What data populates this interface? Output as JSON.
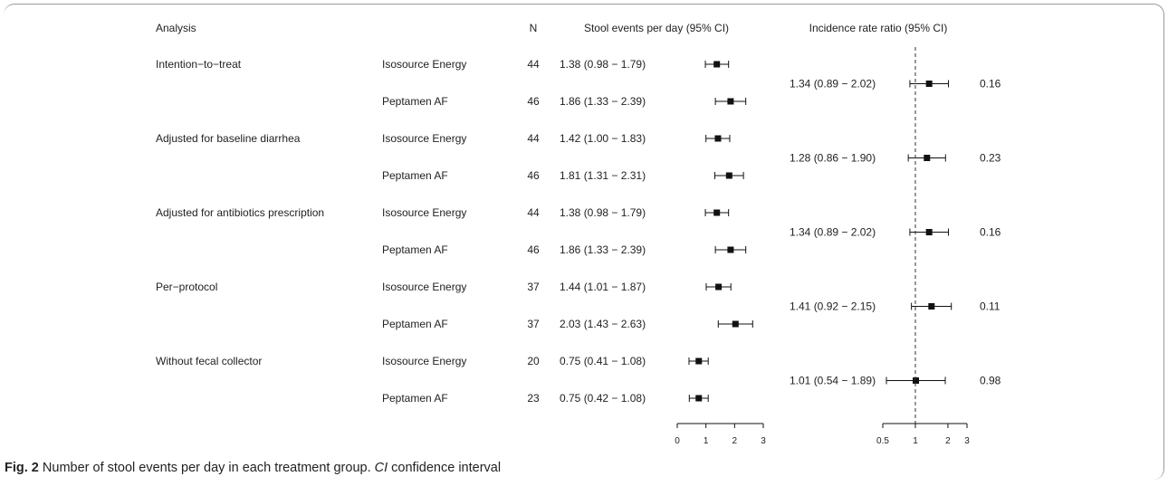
{
  "chart_data": {
    "type": "forest",
    "headers": {
      "analysis": "Analysis",
      "n": "N",
      "stool": "Stool events per day (95% CI)",
      "irr": "Incidence rate ratio (95% CI)"
    },
    "groups": [
      {
        "analysis": "Intention−to−treat",
        "rows": [
          {
            "treatment": "Isosource Energy",
            "n": "44",
            "label": "1.38 (0.98 − 1.79)",
            "est": 1.38,
            "lo": 0.98,
            "hi": 1.79
          },
          {
            "treatment": "Peptamen AF",
            "n": "46",
            "label": "1.86 (1.33 − 2.39)",
            "est": 1.86,
            "lo": 1.33,
            "hi": 2.39
          }
        ],
        "irr": {
          "label": "1.34 (0.89 − 2.02)",
          "est": 1.34,
          "lo": 0.89,
          "hi": 2.02,
          "p": "0.16"
        }
      },
      {
        "analysis": "Adjusted for baseline diarrhea",
        "rows": [
          {
            "treatment": "Isosource Energy",
            "n": "44",
            "label": "1.42 (1.00 − 1.83)",
            "est": 1.42,
            "lo": 1.0,
            "hi": 1.83
          },
          {
            "treatment": "Peptamen AF",
            "n": "46",
            "label": "1.81 (1.31 − 2.31)",
            "est": 1.81,
            "lo": 1.31,
            "hi": 2.31
          }
        ],
        "irr": {
          "label": "1.28 (0.86 − 1.90)",
          "est": 1.28,
          "lo": 0.86,
          "hi": 1.9,
          "p": "0.23"
        }
      },
      {
        "analysis": "Adjusted for antibiotics prescription",
        "rows": [
          {
            "treatment": "Isosource Energy",
            "n": "44",
            "label": "1.38 (0.98 − 1.79)",
            "est": 1.38,
            "lo": 0.98,
            "hi": 1.79
          },
          {
            "treatment": "Peptamen AF",
            "n": "46",
            "label": "1.86 (1.33 − 2.39)",
            "est": 1.86,
            "lo": 1.33,
            "hi": 2.39
          }
        ],
        "irr": {
          "label": "1.34 (0.89 − 2.02)",
          "est": 1.34,
          "lo": 0.89,
          "hi": 2.02,
          "p": "0.16"
        }
      },
      {
        "analysis": "Per−protocol",
        "rows": [
          {
            "treatment": "Isosource Energy",
            "n": "37",
            "label": "1.44 (1.01 − 1.87)",
            "est": 1.44,
            "lo": 1.01,
            "hi": 1.87
          },
          {
            "treatment": "Peptamen AF",
            "n": "37",
            "label": "2.03 (1.43 − 2.63)",
            "est": 2.03,
            "lo": 1.43,
            "hi": 2.63
          }
        ],
        "irr": {
          "label": "1.41 (0.92 − 2.15)",
          "est": 1.41,
          "lo": 0.92,
          "hi": 2.15,
          "p": "0.11"
        }
      },
      {
        "analysis": "Without fecal collector",
        "rows": [
          {
            "treatment": "Isosource Energy",
            "n": "20",
            "label": "0.75 (0.41 − 1.08)",
            "est": 0.75,
            "lo": 0.41,
            "hi": 1.08
          },
          {
            "treatment": "Peptamen AF",
            "n": "23",
            "label": "0.75 (0.42 − 1.08)",
            "est": 0.75,
            "lo": 0.42,
            "hi": 1.08
          }
        ],
        "irr": {
          "label": "1.01 (0.54 − 1.89)",
          "est": 1.01,
          "lo": 0.54,
          "hi": 1.89,
          "p": "0.98"
        }
      }
    ],
    "stool_axis": {
      "range": [
        0,
        3
      ],
      "ticks": [
        0,
        1,
        2,
        3
      ],
      "tick_labels": [
        "0",
        "1",
        "2",
        "3"
      ]
    },
    "irr_axis": {
      "scale": "log",
      "range": [
        0.5,
        3
      ],
      "ticks": [
        0.5,
        1,
        2,
        3
      ],
      "tick_labels": [
        "0.5",
        "1",
        "2",
        "3"
      ],
      "reference": 1
    }
  },
  "caption": {
    "fig": "Fig. 2",
    "text_before": " Number of stool events per day in each treatment group. ",
    "abbr": "CI",
    "text_after": " confidence interval"
  }
}
